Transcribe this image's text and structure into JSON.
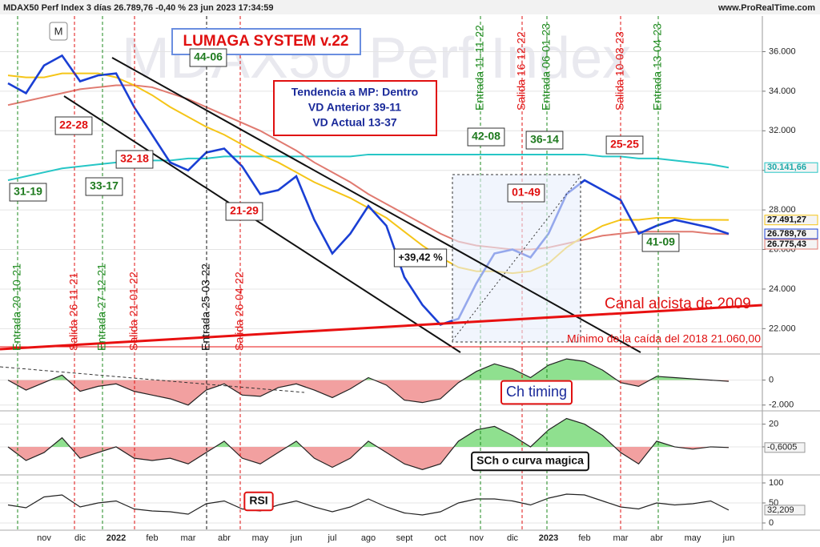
{
  "header": {
    "title": "MDAX50 Perf Index 3 días 26.789,76 -0,40 % 23 jun 2023 17:34:59",
    "site": "www.ProRealTime.com",
    "watermark": "MDAX50 Perf Index",
    "mode": "M",
    "system": "LUMAGA SYSTEM v.22"
  },
  "trend_box": [
    "Tendencia a MP: Dentro",
    "VD Anterior 39-11",
    "VD Actual 13-37"
  ],
  "boxes": [
    {
      "label": "44-06",
      "color": "#1e7a1e"
    },
    {
      "label": "22-28",
      "color": "#e01010"
    },
    {
      "label": "32-18",
      "color": "#e01010"
    },
    {
      "label": "33-17",
      "color": "#1e7a1e"
    },
    {
      "label": "31-19",
      "color": "#1e7a1e"
    },
    {
      "label": "21-29",
      "color": "#e01010"
    },
    {
      "label": "42-08",
      "color": "#1e7a1e"
    },
    {
      "label": "36-14",
      "color": "#1e7a1e"
    },
    {
      "label": "25-25",
      "color": "#e01010"
    },
    {
      "label": "01-49",
      "color": "#e01010"
    },
    {
      "label": "41-09",
      "color": "#1e7a1e"
    },
    {
      "label": "+39,42 %",
      "color": "#111111"
    }
  ],
  "signals": [
    {
      "label": "Entrada 20-10-21",
      "color": "#1e8a1e"
    },
    {
      "label": "Salida 26-11-21",
      "color": "#e01010"
    },
    {
      "label": "Entrada 27-12-21",
      "color": "#1e8a1e"
    },
    {
      "label": "Salida 21-01-22",
      "color": "#e01010"
    },
    {
      "label": "Entrada 25-03-22",
      "color": "#111111"
    },
    {
      "label": "Salida 26-04-22",
      "color": "#e01010"
    },
    {
      "label": "Entrada 11-11-22",
      "color": "#1e8a1e"
    },
    {
      "label": "Salida 16-12-22",
      "color": "#e01010"
    },
    {
      "label": "Entrada 06-01-23",
      "color": "#1e8a1e"
    },
    {
      "label": "Salida 10-03-23",
      "color": "#e01010"
    },
    {
      "label": "Entrada 13-04-23",
      "color": "#1e8a1e"
    }
  ],
  "notes": {
    "channel": "Canal alcista de 2009",
    "minimum": "Mínimo de la caída del 2018  21.060,00"
  },
  "chart_data": [
    {
      "type": "line",
      "categories": [
        null,
        null,
        "nov",
        null,
        "dic",
        null,
        "2022",
        null,
        "feb",
        null,
        "mar",
        null,
        "abr",
        null,
        "may",
        null,
        "jun",
        null,
        "jul",
        null,
        "ago",
        null,
        "sept",
        null,
        "oct",
        null,
        "nov",
        null,
        "dic",
        null,
        "2023",
        null,
        "feb",
        null,
        "mar",
        null,
        "abr",
        null,
        "may",
        null,
        "jun"
      ],
      "ylim": [
        20800,
        37800
      ],
      "yticks": [
        {
          "value": 22000,
          "label": "22.000"
        },
        {
          "value": 24000,
          "label": "24.000"
        },
        {
          "value": 26000,
          "label": "26.000"
        },
        {
          "value": 28000,
          "label": "28.000"
        },
        {
          "value": 30000,
          "label": "30.000"
        },
        {
          "value": 32000,
          "label": "32.000"
        },
        {
          "value": 34000,
          "label": "34.000"
        },
        {
          "value": 36000,
          "label": "36.000"
        }
      ],
      "grid": true,
      "series": [
        {
          "color": "#26c6c6",
          "values": [
            29500,
            29700,
            29900,
            30100,
            30200,
            30300,
            30400,
            30400,
            30500,
            30500,
            30600,
            30600,
            30700,
            30700,
            30700,
            30700,
            30700,
            30700,
            30700,
            30700,
            30800,
            30800,
            30800,
            30800,
            30800,
            30800,
            30800,
            30800,
            30800,
            30800,
            30800,
            30800,
            30800,
            30700,
            30700,
            30600,
            30600,
            30500,
            30400,
            30300,
            30141.66
          ],
          "end_label": "30.141,66"
        },
        {
          "color": "#e07a70",
          "values": [
            33300,
            33500,
            33700,
            33900,
            34100,
            34200,
            34300,
            34300,
            34200,
            33900,
            33600,
            33200,
            32800,
            32400,
            32000,
            31500,
            31000,
            30400,
            29900,
            29400,
            28800,
            28300,
            27800,
            27300,
            26800,
            26400,
            26200,
            26100,
            26000,
            26000,
            26100,
            26300,
            26500,
            26700,
            26800,
            26900,
            26900,
            26900,
            26900,
            26800,
            26775.43
          ],
          "end_label": "26.775,43"
        },
        {
          "color": "#f5c518",
          "values": [
            34800,
            34700,
            34700,
            34900,
            34900,
            34900,
            34700,
            34300,
            33800,
            33200,
            32700,
            32200,
            31800,
            31300,
            30800,
            30400,
            29900,
            29400,
            29000,
            28600,
            28100,
            27600,
            26900,
            26200,
            25600,
            25100,
            24900,
            24900,
            24800,
            24900,
            25300,
            26100,
            26700,
            27200,
            27500,
            27500,
            27600,
            27600,
            27500,
            27500,
            27491.27
          ],
          "end_label": "27.491,27"
        },
        {
          "color": "#1a3fd4",
          "values": [
            34400,
            33900,
            35300,
            35800,
            34500,
            34800,
            34900,
            33200,
            31800,
            30400,
            30000,
            30900,
            31100,
            30200,
            28800,
            29000,
            29700,
            27500,
            25800,
            26800,
            28200,
            27200,
            24600,
            23200,
            22200,
            22500,
            24300,
            25800,
            26000,
            25600,
            26800,
            28800,
            29500,
            29000,
            28500,
            26800,
            27200,
            27500,
            27300,
            27100,
            26789.76
          ],
          "end_label": "26.789,76"
        }
      ]
    },
    {
      "type": "area",
      "title": "Ch timing",
      "ylim": [
        -2400,
        1900
      ],
      "yticks": [
        {
          "value": -2000,
          "label": "-2.000"
        },
        0
      ],
      "values": [
        0,
        -800,
        -200,
        400,
        -900,
        -500,
        -300,
        -900,
        -1200,
        -1500,
        -2000,
        -800,
        -300,
        -1200,
        -1300,
        -600,
        -300,
        -800,
        -1400,
        -700,
        200,
        -400,
        -1600,
        -1800,
        -1500,
        -200,
        700,
        1300,
        900,
        200,
        1200,
        1700,
        1500,
        800,
        -200,
        -500,
        300,
        200,
        100,
        0,
        -100
      ],
      "colors": [
        "#8fe08f",
        "#f2a0a0"
      ]
    },
    {
      "type": "area",
      "title": "SCh o curva magica",
      "ylim": [
        -24,
        31
      ],
      "yticks": [
        0,
        20
      ],
      "values": [
        0,
        -12,
        -5,
        8,
        -10,
        -5,
        0,
        -10,
        -12,
        -10,
        -15,
        -5,
        5,
        -10,
        -15,
        -5,
        5,
        -10,
        -18,
        -10,
        5,
        -5,
        -15,
        -20,
        -15,
        5,
        15,
        18,
        10,
        0,
        15,
        25,
        20,
        10,
        -5,
        -15,
        5,
        0,
        -2,
        0,
        -0.6005
      ],
      "end_label": "-0,6005",
      "colors": [
        "#8fe08f",
        "#f2a0a0"
      ]
    },
    {
      "type": "line",
      "title": "RSI",
      "ylim": [
        -14,
        118
      ],
      "yticks": [
        0,
        50,
        100
      ],
      "values": [
        45,
        38,
        65,
        70,
        40,
        50,
        55,
        35,
        30,
        28,
        22,
        48,
        55,
        35,
        30,
        45,
        55,
        40,
        28,
        40,
        60,
        40,
        25,
        20,
        28,
        50,
        60,
        60,
        55,
        45,
        62,
        72,
        70,
        55,
        40,
        35,
        50,
        45,
        48,
        55,
        32.209
      ],
      "end_label": "32,209",
      "color": "#222222"
    }
  ]
}
